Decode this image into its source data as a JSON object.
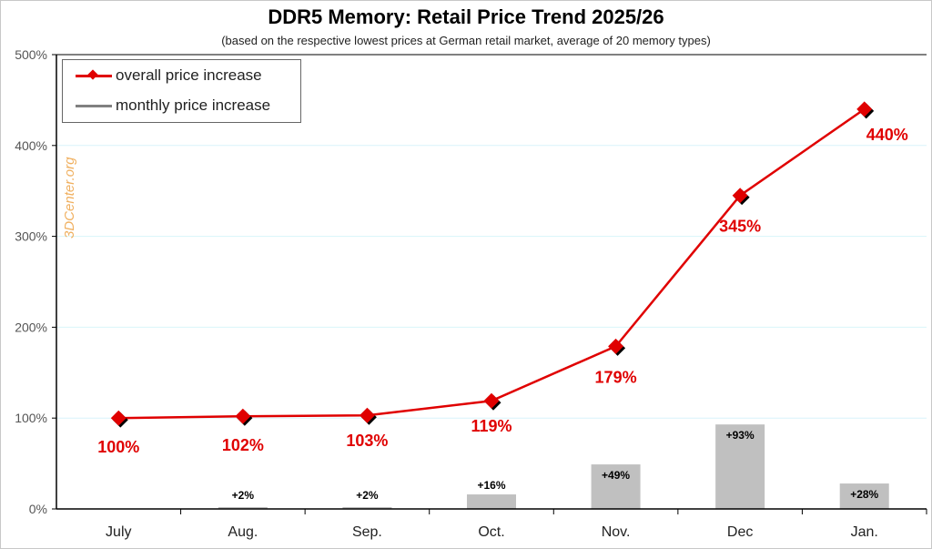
{
  "chart_data": {
    "type": "line+bar",
    "title": "DDR5 Memory: Retail Price Trend 2025/26",
    "subtitle": "(based on the respective lowest prices at German retail market, average of 20 memory types)",
    "watermark": "3DCenter.org",
    "categories": [
      "July",
      "Aug.",
      "Sep.",
      "Oct.",
      "Nov.",
      "Dec",
      "Jan."
    ],
    "ylim": [
      0,
      500
    ],
    "yticks": [
      "0%",
      "100%",
      "200%",
      "300%",
      "400%",
      "500%"
    ],
    "grid": true,
    "legend_position": "top-left",
    "series": [
      {
        "name": "overall price increase",
        "type": "line",
        "color": "#e00000",
        "values": [
          100,
          102,
          103,
          119,
          179,
          345,
          440
        ],
        "labels": [
          "100%",
          "102%",
          "103%",
          "119%",
          "179%",
          "345%",
          "440%"
        ]
      },
      {
        "name": "monthly price increase",
        "type": "bar",
        "color": "#c0c0c0",
        "values": [
          null,
          2,
          2,
          16,
          49,
          93,
          28
        ],
        "labels": [
          "",
          "+2%",
          "+2%",
          "+16%",
          "+49%",
          "+93%",
          "+28%"
        ]
      }
    ]
  }
}
